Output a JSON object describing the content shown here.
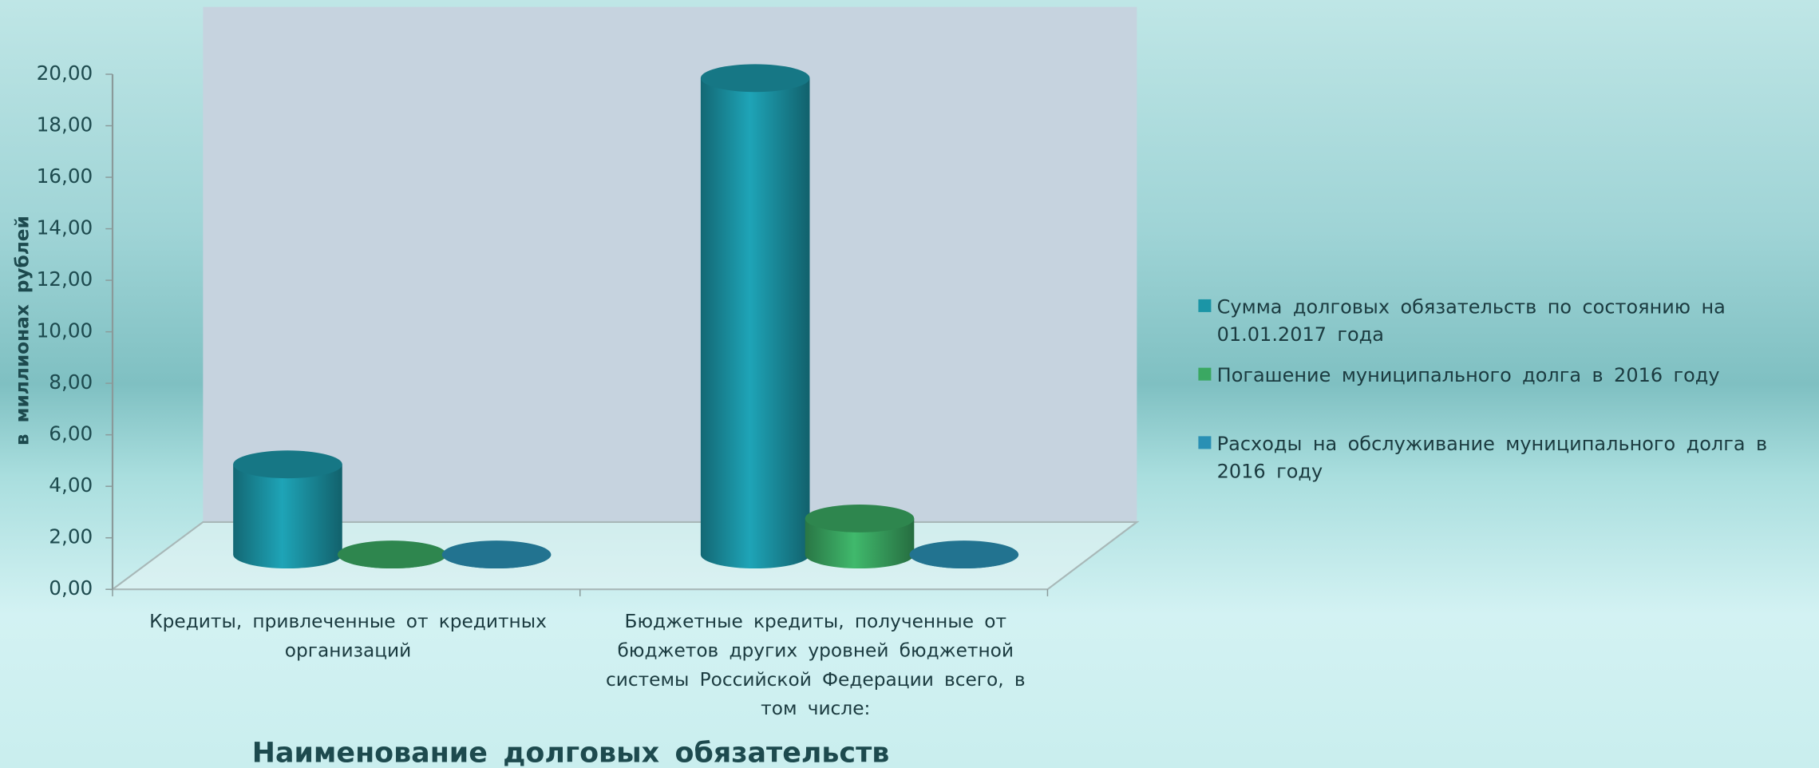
{
  "chart_data": {
    "type": "bar",
    "x_label": "Наименование долговых обязательств",
    "y_label": "в миллионах рублей",
    "categories": [
      "Кредиты, привлеченные от кредитных организаций",
      "Бюджетные кредиты, полученные от бюджетов других уровней бюджетной системы Российской Федерации всего, в том числе:"
    ],
    "series": [
      {
        "name": "Сумма долговых обязательств по состоянию на 01.01.2017 года",
        "color": "#1b95a6",
        "values": [
          3.5,
          18.5
        ]
      },
      {
        "name": "Погашение муниципального долга в 2016 году",
        "color": "#3aa862",
        "values": [
          0,
          1.4
        ]
      },
      {
        "name": "Расходы на обслуживание муниципального долга в 2016 году",
        "color": "#2a90b4",
        "values": [
          0,
          0
        ]
      }
    ],
    "ylim": [
      0,
      20
    ],
    "yticks": [
      {
        "value": 0,
        "label": "0,00"
      },
      {
        "value": 2,
        "label": "2,00"
      },
      {
        "value": 4,
        "label": "4,00"
      },
      {
        "value": 6,
        "label": "6,00"
      },
      {
        "value": 8,
        "label": "8,00"
      },
      {
        "value": 10,
        "label": "10,00"
      },
      {
        "value": 12,
        "label": "12,00"
      },
      {
        "value": 14,
        "label": "14,00"
      },
      {
        "value": 16,
        "label": "16,00"
      },
      {
        "value": 18,
        "label": "18,00"
      },
      {
        "value": 20,
        "label": "20,00"
      }
    ]
  }
}
